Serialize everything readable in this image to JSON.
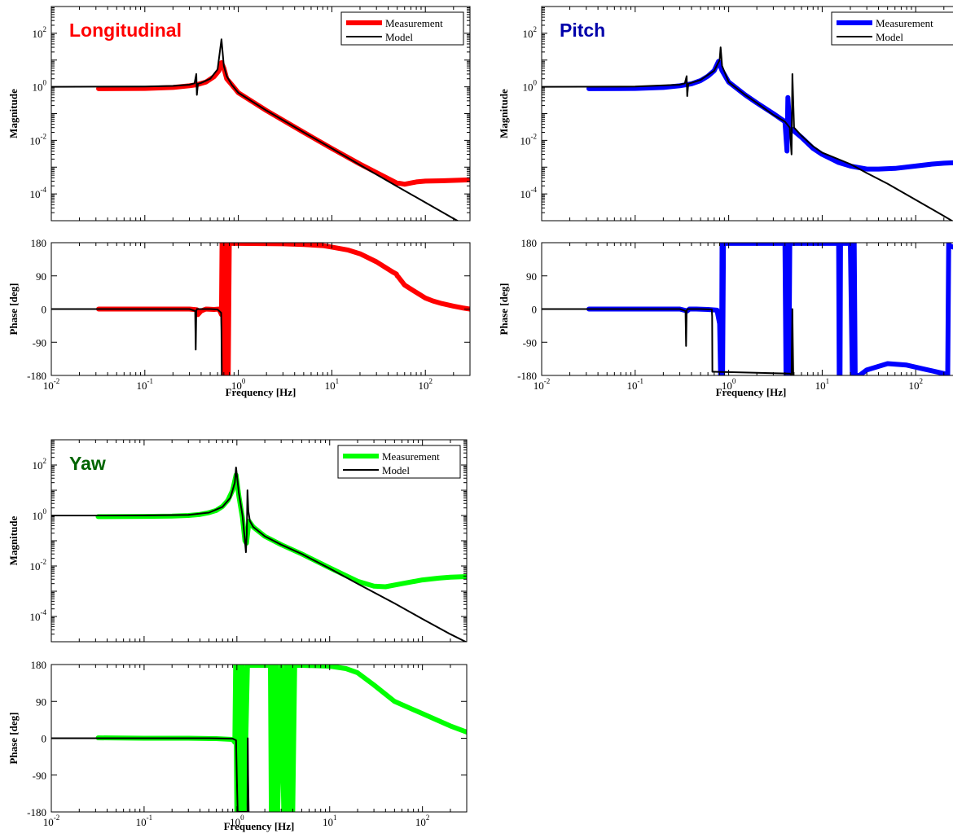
{
  "chart_data": [
    {
      "type": "line",
      "title": "Longitudinal",
      "title_color": "#ff0000",
      "xscale": "log",
      "xlim": [
        0.01,
        300
      ],
      "magnitude": {
        "ylabel": "Magnitude",
        "yscale": "log",
        "ylim": [
          1e-05,
          1000
        ],
        "yticks": [
          0.0001,
          0.01,
          1,
          100
        ],
        "legend_placement": "top-right",
        "series": [
          {
            "name": "Measurement",
            "color": "#ff0000",
            "x": [
              0.032,
              0.1,
              0.2,
              0.3,
              0.36,
              0.45,
              0.55,
              0.62,
              0.66,
              0.7,
              0.75,
              0.85,
              1,
              2,
              5,
              10,
              20,
              50,
              52,
              60,
              80,
              100,
              150,
              200,
              250,
              300
            ],
            "y": [
              0.85,
              0.87,
              0.95,
              1.1,
              1.2,
              1.5,
              2.4,
              4.0,
              8.0,
              5.0,
              2.0,
              1.2,
              0.6,
              0.13,
              0.02,
              0.005,
              0.0013,
              0.00025,
              0.00025,
              0.00023,
              0.00028,
              0.0003,
              0.00031,
              0.00032,
              0.00033,
              0.00034
            ]
          },
          {
            "name": "Model",
            "color": "#000000",
            "x": [
              0.01,
              0.1,
              0.2,
              0.3,
              0.34,
              0.355,
              0.36,
              0.37,
              0.4,
              0.5,
              0.6,
              0.66,
              0.7,
              0.75,
              0.85,
              1,
              2,
              5,
              10,
              20,
              50,
              100,
              200,
              300
            ],
            "y": [
              1,
              1.02,
              1.08,
              1.2,
              1.35,
              3.0,
              0.5,
              1.3,
              1.4,
              2.0,
              4.5,
              60,
              6.0,
              2.5,
              1.2,
              0.6,
              0.13,
              0.02,
              0.005,
              0.0012,
              0.00019,
              4.8e-05,
              1.2e-05,
              5.5e-06
            ]
          }
        ]
      },
      "phase": {
        "ylabel": "Phase [deg]",
        "xlabel": "Frequency [Hz]",
        "ylim": [
          -180,
          180
        ],
        "yticks": [
          -180,
          -90,
          0,
          90,
          180
        ],
        "series": [
          {
            "name": "Measurement",
            "color": "#ff0000",
            "x": [
              0.032,
              0.2,
              0.3,
              0.36,
              0.37,
              0.4,
              0.45,
              0.55,
              0.62,
              0.66,
              0.67,
              0.7,
              0.72,
              0.74,
              0.76,
              0.78,
              0.8,
              1,
              3,
              5,
              8,
              10,
              15,
              20,
              30,
              45,
              49,
              50,
              51,
              60,
              80,
              100,
              120,
              150,
              200,
              250,
              300
            ],
            "y": [
              0,
              0,
              0,
              -2,
              -15,
              -5,
              0,
              -1,
              0,
              -15,
              180,
              -180,
              180,
              -180,
              180,
              -180,
              178,
              178,
              177,
              175,
              172,
              168,
              160,
              150,
              128,
              100,
              95,
              90,
              88,
              65,
              45,
              30,
              22,
              15,
              8,
              3,
              0
            ]
          },
          {
            "name": "Model",
            "color": "#000000",
            "x": [
              0.01,
              0.3,
              0.345,
              0.35,
              0.355,
              0.36,
              0.5,
              0.6,
              0.655,
              0.66,
              0.665,
              0.668
            ],
            "y": [
              0,
              0,
              -5,
              -110,
              -5,
              0,
              0,
              -1,
              -10,
              -60,
              -180,
              -180
            ]
          }
        ]
      }
    },
    {
      "type": "line",
      "title": "Pitch",
      "title_color": "#0000aa",
      "xscale": "log",
      "xlim": [
        0.01,
        300
      ],
      "magnitude": {
        "ylabel": "Magnitude",
        "yscale": "log",
        "ylim": [
          1e-05,
          1000
        ],
        "yticks": [
          0.0001,
          0.01,
          1,
          100
        ],
        "legend_placement": "top-right",
        "series": [
          {
            "name": "Measurement",
            "color": "#0000ff",
            "x": [
              0.032,
              0.1,
              0.2,
              0.3,
              0.4,
              0.5,
              0.6,
              0.7,
              0.78,
              0.85,
              1,
              1.5,
              2,
              3,
              4,
              4.2,
              4.3,
              4.5,
              5,
              6,
              8,
              10,
              15,
              20,
              30,
              40,
              60,
              100,
              150,
              200,
              300
            ],
            "y": [
              0.85,
              0.87,
              0.95,
              1.1,
              1.3,
              1.7,
              2.5,
              4.0,
              9.0,
              4.0,
              1.5,
              0.5,
              0.25,
              0.1,
              0.05,
              0.004,
              0.4,
              0.03,
              0.022,
              0.013,
              0.005,
              0.003,
              0.0015,
              0.0011,
              0.00085,
              0.00085,
              0.0009,
              0.0011,
              0.0013,
              0.0014,
              0.0015
            ]
          },
          {
            "name": "Model",
            "color": "#000000",
            "x": [
              0.01,
              0.1,
              0.3,
              0.34,
              0.355,
              0.36,
              0.37,
              0.5,
              0.7,
              0.8,
              0.82,
              0.85,
              1,
              1.5,
              2,
              3,
              4,
              4.5,
              4.7,
              4.8,
              5,
              6,
              8,
              10,
              20,
              30,
              50,
              100,
              200,
              300
            ],
            "y": [
              1,
              1.02,
              1.2,
              1.35,
              2.5,
              0.45,
              1.3,
              1.8,
              4.0,
              10,
              30,
              6.0,
              1.5,
              0.5,
              0.25,
              0.09,
              0.05,
              0.03,
              0.003,
              3.0,
              0.03,
              0.015,
              0.006,
              0.0035,
              0.0013,
              0.0006,
              0.00024,
              6e-05,
              1.5e-05,
              6.5e-06
            ]
          }
        ]
      },
      "phase": {
        "ylabel": "Phase [deg]",
        "xlabel": "Frequency [Hz]",
        "ylim": [
          -180,
          180
        ],
        "yticks": [
          -180,
          -90,
          0,
          90,
          180
        ],
        "series": [
          {
            "name": "Measurement",
            "color": "#0000ff",
            "x": [
              0.032,
              0.3,
              0.36,
              0.38,
              0.45,
              0.6,
              0.75,
              0.8,
              0.82,
              0.84,
              0.85,
              0.86,
              0.88,
              1,
              2,
              4,
              4.1,
              4.2,
              4.35,
              4.4,
              4.5,
              5,
              10,
              15,
              15.2,
              15.5,
              15.7,
              16,
              20,
              21,
              21.5,
              22,
              22.5,
              25,
              30,
              50,
              80,
              120,
              200,
              220,
              225,
              230,
              240,
              270,
              300
            ],
            "y": [
              0,
              0,
              -5,
              0,
              0,
              -1,
              -3,
              -40,
              -180,
              -180,
              180,
              -180,
              178,
              178,
              178,
              178,
              -180,
              -180,
              180,
              -180,
              178,
              178,
              178,
              178,
              -180,
              -180,
              178,
              178,
              178,
              -180,
              -180,
              178,
              -180,
              -180,
              -165,
              -148,
              -152,
              -162,
              -175,
              -180,
              178,
              172,
              170,
              165,
              162
            ]
          },
          {
            "name": "Model",
            "color": "#000000",
            "x": [
              0.01,
              0.3,
              0.345,
              0.35,
              0.355,
              0.36,
              0.5,
              0.66,
              0.665,
              0.67,
              0.7,
              4.5,
              4.7,
              4.8,
              4.85,
              4.9
            ],
            "y": [
              0,
              0,
              -5,
              -100,
              -5,
              0,
              0,
              -1,
              -20,
              -170,
              -170,
              -175,
              -178,
              0,
              -90,
              -180
            ]
          }
        ]
      }
    },
    {
      "type": "line",
      "title": "Yaw",
      "title_color": "#006400",
      "xscale": "log",
      "xlim": [
        0.01,
        300
      ],
      "magnitude": {
        "ylabel": "Magnitude",
        "yscale": "log",
        "ylim": [
          1e-05,
          1000
        ],
        "yticks": [
          0.0001,
          0.01,
          1,
          100
        ],
        "legend_placement": "top-right",
        "series": [
          {
            "name": "Measurement",
            "color": "#00ff00",
            "x": [
              0.032,
              0.1,
              0.2,
              0.3,
              0.4,
              0.5,
              0.6,
              0.7,
              0.8,
              0.9,
              0.98,
              1.05,
              1.15,
              1.22,
              1.27,
              1.35,
              1.5,
              2,
              3,
              5,
              10,
              20,
              30,
              40,
              60,
              100,
              150,
              200,
              300
            ],
            "y": [
              0.9,
              0.92,
              0.95,
              1.0,
              1.1,
              1.3,
              1.6,
              2.3,
              4.0,
              10,
              40,
              6.0,
              0.8,
              0.1,
              0.08,
              0.6,
              0.35,
              0.15,
              0.07,
              0.03,
              0.0085,
              0.0025,
              0.0016,
              0.0015,
              0.002,
              0.0028,
              0.0033,
              0.0036,
              0.0038
            ]
          },
          {
            "name": "Model",
            "color": "#000000",
            "x": [
              0.01,
              0.1,
              0.3,
              0.5,
              0.7,
              0.85,
              0.95,
              0.98,
              1.0,
              1.05,
              1.15,
              1.22,
              1.25,
              1.28,
              1.3,
              1.33,
              1.38,
              1.5,
              2,
              3,
              5,
              10,
              20,
              50,
              100,
              200,
              300
            ],
            "y": [
              1,
              1.01,
              1.05,
              1.3,
              2.2,
              5.0,
              20,
              80,
              40,
              8.0,
              1.0,
              0.1,
              0.035,
              0.2,
              10,
              1.5,
              0.6,
              0.35,
              0.15,
              0.07,
              0.03,
              0.008,
              0.002,
              0.00033,
              8e-05,
              2e-05,
              9.5e-06
            ]
          }
        ]
      },
      "phase": {
        "ylabel": "Phase [deg]",
        "xlabel": "Frequency [Hz]",
        "ylim": [
          -180,
          180
        ],
        "yticks": [
          -180,
          -90,
          0,
          90,
          180
        ],
        "series": [
          {
            "name": "Measurement",
            "color": "#00ff00",
            "x": [
              0.032,
              0.1,
              0.3,
              0.6,
              0.9,
              0.95,
              0.97,
              1.0,
              1.05,
              1.1,
              1.15,
              1.2,
              1.3,
              1.5,
              2,
              2.3,
              2.35,
              2.45,
              2.55,
              2.65,
              2.75,
              3.0,
              3.2,
              3.4,
              3.6,
              3.8,
              4.0,
              4.2,
              5,
              10,
              15,
              20,
              30,
              50,
              100,
              200,
              300
            ],
            "y": [
              1,
              0,
              0,
              -1,
              -3,
              -10,
              180,
              -180,
              180,
              -180,
              180,
              -180,
              178,
              178,
              178,
              178,
              -180,
              180,
              -180,
              180,
              -180,
              178,
              -180,
              180,
              -180,
              180,
              -180,
              178,
              178,
              176,
              170,
              160,
              130,
              90,
              60,
              30,
              15
            ]
          },
          {
            "name": "Model",
            "color": "#000000",
            "x": [
              0.01,
              0.5,
              0.9,
              0.98,
              1.0,
              1.02,
              1.05,
              1.25,
              1.3,
              1.31,
              1.32,
              1.34
            ],
            "y": [
              0,
              0,
              -1,
              -5,
              -100,
              -180,
              -180,
              -180,
              -180,
              0,
              -90,
              -180
            ]
          }
        ]
      }
    }
  ]
}
